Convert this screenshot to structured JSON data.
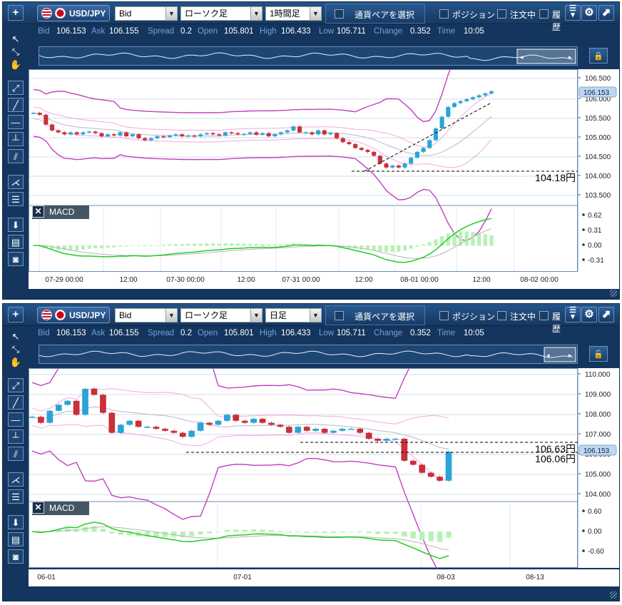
{
  "panels": [
    {
      "symbol": "USD/JPY",
      "price_type": "Bid",
      "chart_type": "ローソク足",
      "timeframe": "1時間足",
      "pair_select": "通貨ペアを選択",
      "checkboxes": [
        "ポジション",
        "注文中",
        "履歴"
      ],
      "quote": {
        "bid_label": "Bid",
        "bid": "106.153",
        "ask_label": "Ask",
        "ask": "106.155",
        "spread_label": "Spread",
        "spread": "0.2",
        "open_label": "Open",
        "open": "105.801",
        "high_label": "High",
        "high": "106.433",
        "low_label": "Low",
        "low": "105.711",
        "change_label": "Change",
        "change": "0.352",
        "time_label": "Time",
        "time": "10:05"
      },
      "price_ticks": [
        "106.500",
        "106.000",
        "105.500",
        "105.000",
        "104.500",
        "104.000",
        "103.500"
      ],
      "current_price": "106.153",
      "annotations": [
        "104.18円"
      ],
      "macd_label": "MACD",
      "macd_ticks": [
        "0.62",
        "0.31",
        "0.00",
        "-0.31"
      ],
      "time_ticks": [
        "07-29 00:00",
        "12:00",
        "07-30 00:00",
        "12:00",
        "07-31 00:00",
        "12:00",
        "08-01 00:00",
        "12:00",
        "08-02 00:00"
      ]
    },
    {
      "symbol": "USD/JPY",
      "price_type": "Bid",
      "chart_type": "ローソク足",
      "timeframe": "日足",
      "pair_select": "通貨ペアを選択",
      "checkboxes": [
        "ポジション",
        "注文中",
        "履歴"
      ],
      "quote": {
        "bid_label": "Bid",
        "bid": "106.153",
        "ask_label": "Ask",
        "ask": "106.155",
        "spread_label": "Spread",
        "spread": "0.2",
        "open_label": "Open",
        "open": "105.801",
        "high_label": "High",
        "high": "106.433",
        "low_label": "Low",
        "low": "105.711",
        "change_label": "Change",
        "change": "0.352",
        "time_label": "Time",
        "time": "10:05"
      },
      "price_ticks": [
        "110.000",
        "109.000",
        "108.000",
        "107.000",
        "106.000",
        "105.000",
        "104.000"
      ],
      "current_price": "106.153",
      "annotations": [
        "106.63円",
        "106.06円"
      ],
      "macd_label": "MACD",
      "macd_ticks": [
        "0.60",
        "0.00",
        "-0.60"
      ],
      "time_ticks": [
        "06-01",
        "07-01",
        "08-03",
        "08-13"
      ]
    }
  ],
  "chart_data": [
    {
      "type": "candlestick",
      "title": "USD/JPY 1時間足",
      "ylim": [
        103.3,
        106.7
      ],
      "close": [
        105.6,
        105.55,
        105.3,
        105.15,
        105.1,
        105.05,
        105.1,
        105.05,
        105.1,
        105.12,
        105.08,
        105.0,
        105.05,
        105.02,
        105.1,
        105.0,
        105.05,
        104.95,
        104.9,
        104.95,
        105.0,
        104.98,
        105.02,
        105.05,
        105.0,
        105.02,
        105.0,
        105.05,
        105.08,
        105.05,
        105.02,
        105.1,
        105.08,
        105.05,
        105.06,
        105.1,
        105.04,
        105.08,
        105.0,
        105.05,
        105.1,
        105.15,
        105.25,
        105.1,
        105.1,
        105.05,
        105.15,
        105.05,
        105.08,
        104.95,
        104.85,
        104.8,
        104.7,
        104.65,
        104.6,
        104.5,
        104.3,
        104.2,
        104.25,
        104.2,
        104.3,
        104.45,
        104.6,
        104.7,
        104.9,
        105.2,
        105.5,
        105.75,
        105.85,
        105.9,
        105.95,
        106.0,
        106.05,
        106.1,
        106.15
      ],
      "macd_ticks": [
        0.62,
        0.31,
        0.0,
        -0.31
      ]
    },
    {
      "type": "candlestick",
      "title": "USD/JPY 日足",
      "ylim": [
        103.8,
        110.3
      ],
      "close": [
        107.9,
        107.6,
        108.2,
        108.5,
        108.7,
        108.0,
        109.3,
        109.0,
        108.1,
        107.1,
        107.5,
        107.7,
        107.4,
        107.4,
        107.3,
        107.2,
        107.1,
        106.9,
        107.2,
        107.6,
        107.5,
        107.7,
        108.0,
        107.7,
        107.6,
        107.8,
        107.6,
        107.5,
        107.4,
        107.1,
        107.4,
        107.2,
        107.3,
        107.1,
        107.2,
        107.3,
        107.3,
        107.1,
        106.8,
        106.7,
        106.8,
        106.8,
        105.7,
        105.5,
        105.1,
        104.9,
        104.7,
        106.15
      ],
      "macd_ticks": [
        0.6,
        0.0,
        -0.6
      ]
    }
  ]
}
